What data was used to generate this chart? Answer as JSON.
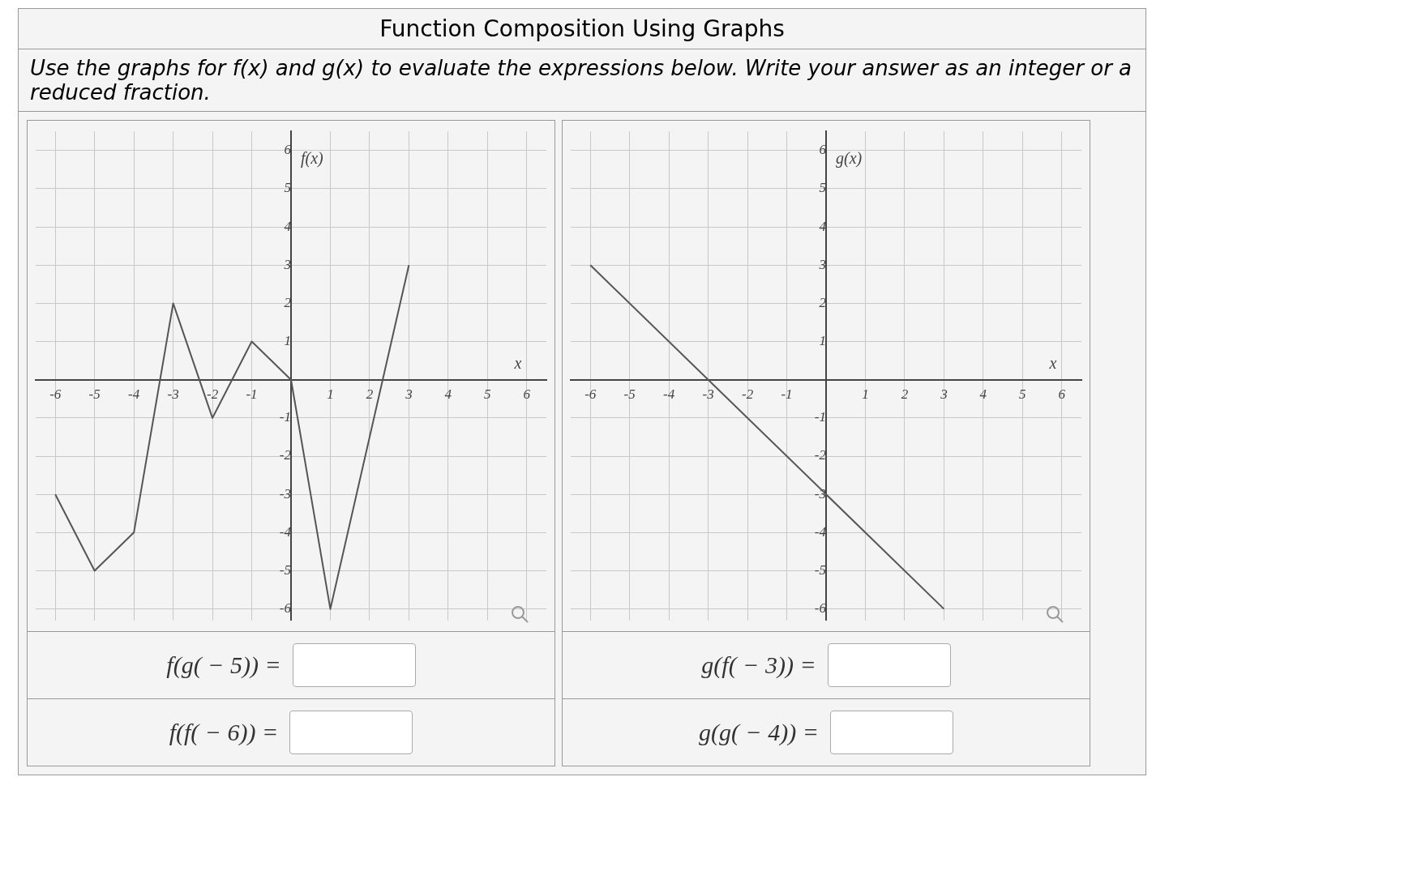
{
  "chart_data": [
    {
      "type": "line",
      "title": "Function Composition Using Graphs",
      "subtitle": "Use the graphs for f(x) and g(x) to evaluate the expressions below. Write your answer as an integer or a reduced fraction.",
      "xlabel": "x",
      "annotations": [
        "f(g( − 5)) =",
        "f(f( − 6)) ="
      ],
      "series": [
        {
          "name": "f(x)",
          "color": "#555555",
          "x": [
            -6,
            -5,
            -4,
            -3,
            -2,
            -1,
            0,
            1,
            3
          ],
          "values": [
            -3,
            -5,
            -4,
            2,
            -1,
            1,
            0,
            -6,
            3
          ]
        }
      ],
      "xlim": [
        -6.5,
        6.5
      ],
      "ylim": [
        -6.3,
        6.5
      ],
      "xticks": [
        -6,
        -5,
        -4,
        -3,
        -2,
        -1,
        {
          "value": 0,
          "label": null
        },
        1,
        2,
        3,
        4,
        5,
        6
      ],
      "yticks": [
        -6,
        -5,
        -4,
        -3,
        -2,
        -1,
        {
          "value": 0,
          "label": null
        },
        1,
        2,
        3,
        4,
        5,
        6
      ],
      "grid": true,
      "legend": false,
      "marker": "none",
      "line_style": "solid"
    },
    {
      "type": "line",
      "xlabel": "x",
      "annotations": [
        "g(f( − 3)) =",
        "g(g( − 4)) ="
      ],
      "series": [
        {
          "name": "g(x)",
          "color": "#555555",
          "x": [
            -6,
            3
          ],
          "values": [
            3,
            -6
          ]
        }
      ],
      "xlim": [
        -6.5,
        6.5
      ],
      "ylim": [
        -6.3,
        6.5
      ],
      "xticks": [
        -6,
        -5,
        -4,
        -3,
        -2,
        -1,
        {
          "value": 0,
          "label": null
        },
        1,
        2,
        3,
        4,
        5,
        6
      ],
      "yticks": [
        -6,
        -5,
        -4,
        -3,
        -2,
        -1,
        {
          "value": 0,
          "label": null
        },
        1,
        2,
        3,
        4,
        5,
        6
      ],
      "grid": true,
      "legend": false,
      "marker": "none",
      "line_style": "solid"
    }
  ]
}
